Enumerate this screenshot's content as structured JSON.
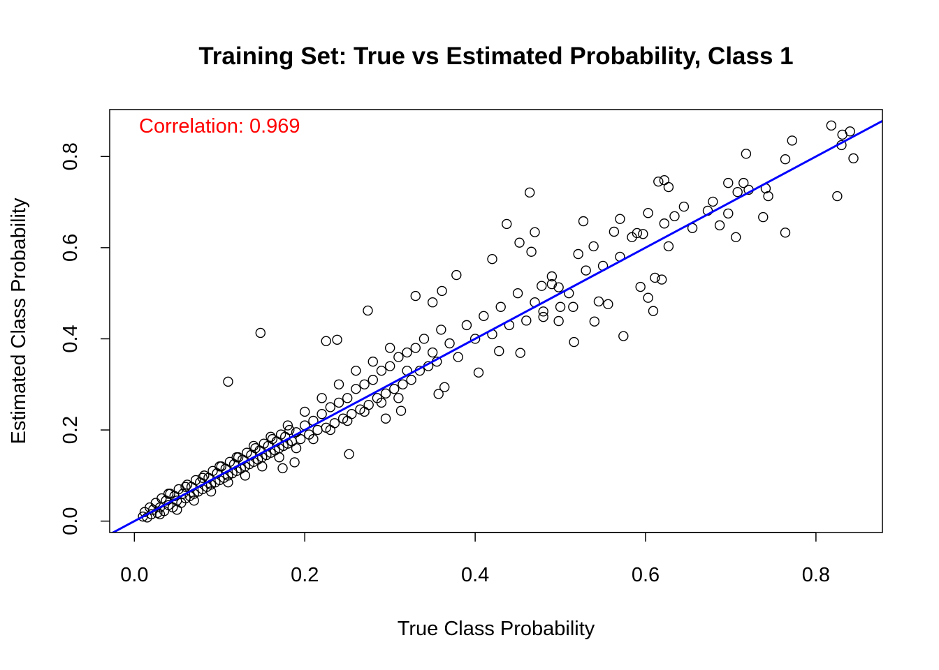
{
  "chart_data": {
    "type": "scatter",
    "title": "Training Set: True vs Estimated Probability, Class 1",
    "xlabel": "True Class Probability",
    "ylabel": "Estimated Class Probability",
    "xlim": [
      -0.029,
      0.878
    ],
    "ylim": [
      -0.025,
      0.903
    ],
    "xticks": [
      {
        "value": 0.0,
        "label": "0.0"
      },
      {
        "value": 0.2,
        "label": "0.2"
      },
      {
        "value": 0.4,
        "label": "0.4"
      },
      {
        "value": 0.6,
        "label": "0.6"
      },
      {
        "value": 0.8,
        "label": "0.8"
      }
    ],
    "yticks": [
      {
        "value": 0.0,
        "label": "0.0"
      },
      {
        "value": 0.2,
        "label": "0.2"
      },
      {
        "value": 0.4,
        "label": "0.4"
      },
      {
        "value": 0.6,
        "label": "0.6"
      },
      {
        "value": 0.8,
        "label": "0.8"
      }
    ],
    "annotation": {
      "text": "Correlation: 0.969",
      "color": "#ff0000"
    },
    "reference_line": {
      "intercept": 0,
      "slope": 1,
      "color": "#0000ff"
    },
    "marker_color": "#000000",
    "grid": false,
    "points": [
      [
        0.818,
        0.868
      ],
      [
        0.772,
        0.835
      ],
      [
        0.718,
        0.806
      ],
      [
        0.764,
        0.794
      ],
      [
        0.83,
        0.825
      ],
      [
        0.84,
        0.855
      ],
      [
        0.844,
        0.796
      ],
      [
        0.831,
        0.848
      ],
      [
        0.825,
        0.713
      ],
      [
        0.741,
        0.73
      ],
      [
        0.744,
        0.713
      ],
      [
        0.738,
        0.667
      ],
      [
        0.764,
        0.633
      ],
      [
        0.697,
        0.742
      ],
      [
        0.708,
        0.722
      ],
      [
        0.715,
        0.742
      ],
      [
        0.721,
        0.727
      ],
      [
        0.615,
        0.745
      ],
      [
        0.622,
        0.748
      ],
      [
        0.627,
        0.733
      ],
      [
        0.464,
        0.721
      ],
      [
        0.645,
        0.69
      ],
      [
        0.634,
        0.669
      ],
      [
        0.679,
        0.701
      ],
      [
        0.673,
        0.681
      ],
      [
        0.687,
        0.649
      ],
      [
        0.697,
        0.675
      ],
      [
        0.655,
        0.643
      ],
      [
        0.706,
        0.623
      ],
      [
        0.603,
        0.676
      ],
      [
        0.622,
        0.653
      ],
      [
        0.59,
        0.632
      ],
      [
        0.627,
        0.603
      ],
      [
        0.57,
        0.663
      ],
      [
        0.527,
        0.658
      ],
      [
        0.437,
        0.652
      ],
      [
        0.47,
        0.634
      ],
      [
        0.452,
        0.611
      ],
      [
        0.466,
        0.591
      ],
      [
        0.521,
        0.586
      ],
      [
        0.539,
        0.603
      ],
      [
        0.563,
        0.635
      ],
      [
        0.584,
        0.623
      ],
      [
        0.597,
        0.63
      ],
      [
        0.42,
        0.575
      ],
      [
        0.378,
        0.54
      ],
      [
        0.274,
        0.462
      ],
      [
        0.148,
        0.413
      ],
      [
        0.11,
        0.306
      ],
      [
        0.574,
        0.406
      ],
      [
        0.516,
        0.393
      ],
      [
        0.609,
        0.461
      ],
      [
        0.603,
        0.49
      ],
      [
        0.594,
        0.514
      ],
      [
        0.611,
        0.534
      ],
      [
        0.619,
        0.53
      ],
      [
        0.556,
        0.476
      ],
      [
        0.545,
        0.482
      ],
      [
        0.404,
        0.326
      ],
      [
        0.453,
        0.369
      ],
      [
        0.428,
        0.373
      ],
      [
        0.252,
        0.147
      ],
      [
        0.174,
        0.116
      ],
      [
        0.188,
        0.129
      ],
      [
        0.295,
        0.225
      ],
      [
        0.313,
        0.242
      ],
      [
        0.357,
        0.279
      ],
      [
        0.364,
        0.294
      ],
      [
        0.33,
        0.494
      ],
      [
        0.35,
        0.48
      ],
      [
        0.361,
        0.505
      ],
      [
        0.478,
        0.516
      ],
      [
        0.49,
        0.537
      ],
      [
        0.498,
        0.513
      ],
      [
        0.48,
        0.448
      ],
      [
        0.498,
        0.439
      ],
      [
        0.515,
        0.47
      ],
      [
        0.54,
        0.438
      ],
      [
        0.225,
        0.395
      ],
      [
        0.238,
        0.398
      ],
      [
        0.01,
        0.01
      ],
      [
        0.012,
        0.02
      ],
      [
        0.015,
        0.008
      ],
      [
        0.018,
        0.03
      ],
      [
        0.02,
        0.015
      ],
      [
        0.022,
        0.025
      ],
      [
        0.025,
        0.04
      ],
      [
        0.027,
        0.018
      ],
      [
        0.03,
        0.03
      ],
      [
        0.032,
        0.05
      ],
      [
        0.035,
        0.022
      ],
      [
        0.037,
        0.045
      ],
      [
        0.04,
        0.035
      ],
      [
        0.042,
        0.06
      ],
      [
        0.045,
        0.03
      ],
      [
        0.047,
        0.055
      ],
      [
        0.05,
        0.045
      ],
      [
        0.052,
        0.07
      ],
      [
        0.055,
        0.04
      ],
      [
        0.057,
        0.06
      ],
      [
        0.06,
        0.05
      ],
      [
        0.062,
        0.08
      ],
      [
        0.065,
        0.055
      ],
      [
        0.067,
        0.075
      ],
      [
        0.07,
        0.06
      ],
      [
        0.072,
        0.09
      ],
      [
        0.075,
        0.065
      ],
      [
        0.077,
        0.085
      ],
      [
        0.08,
        0.07
      ],
      [
        0.082,
        0.1
      ],
      [
        0.085,
        0.075
      ],
      [
        0.087,
        0.095
      ],
      [
        0.09,
        0.08
      ],
      [
        0.092,
        0.11
      ],
      [
        0.095,
        0.085
      ],
      [
        0.097,
        0.105
      ],
      [
        0.1,
        0.09
      ],
      [
        0.102,
        0.12
      ],
      [
        0.105,
        0.095
      ],
      [
        0.107,
        0.115
      ],
      [
        0.11,
        0.1
      ],
      [
        0.112,
        0.13
      ],
      [
        0.115,
        0.105
      ],
      [
        0.117,
        0.125
      ],
      [
        0.12,
        0.11
      ],
      [
        0.122,
        0.14
      ],
      [
        0.125,
        0.115
      ],
      [
        0.127,
        0.135
      ],
      [
        0.13,
        0.12
      ],
      [
        0.132,
        0.15
      ],
      [
        0.135,
        0.125
      ],
      [
        0.137,
        0.145
      ],
      [
        0.14,
        0.13
      ],
      [
        0.142,
        0.16
      ],
      [
        0.145,
        0.135
      ],
      [
        0.147,
        0.155
      ],
      [
        0.15,
        0.14
      ],
      [
        0.152,
        0.17
      ],
      [
        0.155,
        0.145
      ],
      [
        0.157,
        0.165
      ],
      [
        0.16,
        0.15
      ],
      [
        0.162,
        0.18
      ],
      [
        0.165,
        0.155
      ],
      [
        0.167,
        0.175
      ],
      [
        0.17,
        0.16
      ],
      [
        0.172,
        0.19
      ],
      [
        0.175,
        0.165
      ],
      [
        0.177,
        0.185
      ],
      [
        0.18,
        0.17
      ],
      [
        0.182,
        0.2
      ],
      [
        0.185,
        0.175
      ],
      [
        0.19,
        0.195
      ],
      [
        0.195,
        0.18
      ],
      [
        0.2,
        0.21
      ],
      [
        0.205,
        0.19
      ],
      [
        0.21,
        0.22
      ],
      [
        0.215,
        0.2
      ],
      [
        0.22,
        0.235
      ],
      [
        0.225,
        0.205
      ],
      [
        0.23,
        0.25
      ],
      [
        0.235,
        0.215
      ],
      [
        0.24,
        0.26
      ],
      [
        0.245,
        0.225
      ],
      [
        0.25,
        0.27
      ],
      [
        0.255,
        0.235
      ],
      [
        0.26,
        0.29
      ],
      [
        0.265,
        0.245
      ],
      [
        0.27,
        0.3
      ],
      [
        0.275,
        0.255
      ],
      [
        0.28,
        0.31
      ],
      [
        0.285,
        0.27
      ],
      [
        0.29,
        0.33
      ],
      [
        0.295,
        0.28
      ],
      [
        0.3,
        0.34
      ],
      [
        0.305,
        0.29
      ],
      [
        0.31,
        0.36
      ],
      [
        0.315,
        0.3
      ],
      [
        0.32,
        0.37
      ],
      [
        0.325,
        0.31
      ],
      [
        0.33,
        0.38
      ],
      [
        0.335,
        0.33
      ],
      [
        0.34,
        0.4
      ],
      [
        0.345,
        0.34
      ],
      [
        0.35,
        0.37
      ],
      [
        0.355,
        0.35
      ],
      [
        0.36,
        0.42
      ],
      [
        0.37,
        0.39
      ],
      [
        0.38,
        0.36
      ],
      [
        0.39,
        0.43
      ],
      [
        0.4,
        0.4
      ],
      [
        0.41,
        0.45
      ],
      [
        0.42,
        0.41
      ],
      [
        0.43,
        0.47
      ],
      [
        0.44,
        0.43
      ],
      [
        0.45,
        0.5
      ],
      [
        0.46,
        0.44
      ],
      [
        0.47,
        0.48
      ],
      [
        0.48,
        0.46
      ],
      [
        0.49,
        0.52
      ],
      [
        0.5,
        0.47
      ],
      [
        0.51,
        0.5
      ],
      [
        0.53,
        0.55
      ],
      [
        0.55,
        0.56
      ],
      [
        0.57,
        0.58
      ],
      [
        0.03,
        0.015
      ],
      [
        0.04,
        0.06
      ],
      [
        0.05,
        0.025
      ],
      [
        0.06,
        0.075
      ],
      [
        0.07,
        0.045
      ],
      [
        0.08,
        0.095
      ],
      [
        0.09,
        0.065
      ],
      [
        0.1,
        0.12
      ],
      [
        0.11,
        0.085
      ],
      [
        0.12,
        0.14
      ],
      [
        0.13,
        0.1
      ],
      [
        0.14,
        0.165
      ],
      [
        0.15,
        0.12
      ],
      [
        0.16,
        0.185
      ],
      [
        0.17,
        0.14
      ],
      [
        0.18,
        0.21
      ],
      [
        0.19,
        0.16
      ],
      [
        0.2,
        0.24
      ],
      [
        0.21,
        0.18
      ],
      [
        0.22,
        0.27
      ],
      [
        0.23,
        0.2
      ],
      [
        0.24,
        0.3
      ],
      [
        0.25,
        0.22
      ],
      [
        0.26,
        0.33
      ],
      [
        0.27,
        0.24
      ],
      [
        0.28,
        0.35
      ],
      [
        0.29,
        0.26
      ],
      [
        0.3,
        0.38
      ],
      [
        0.31,
        0.27
      ],
      [
        0.32,
        0.33
      ]
    ]
  }
}
